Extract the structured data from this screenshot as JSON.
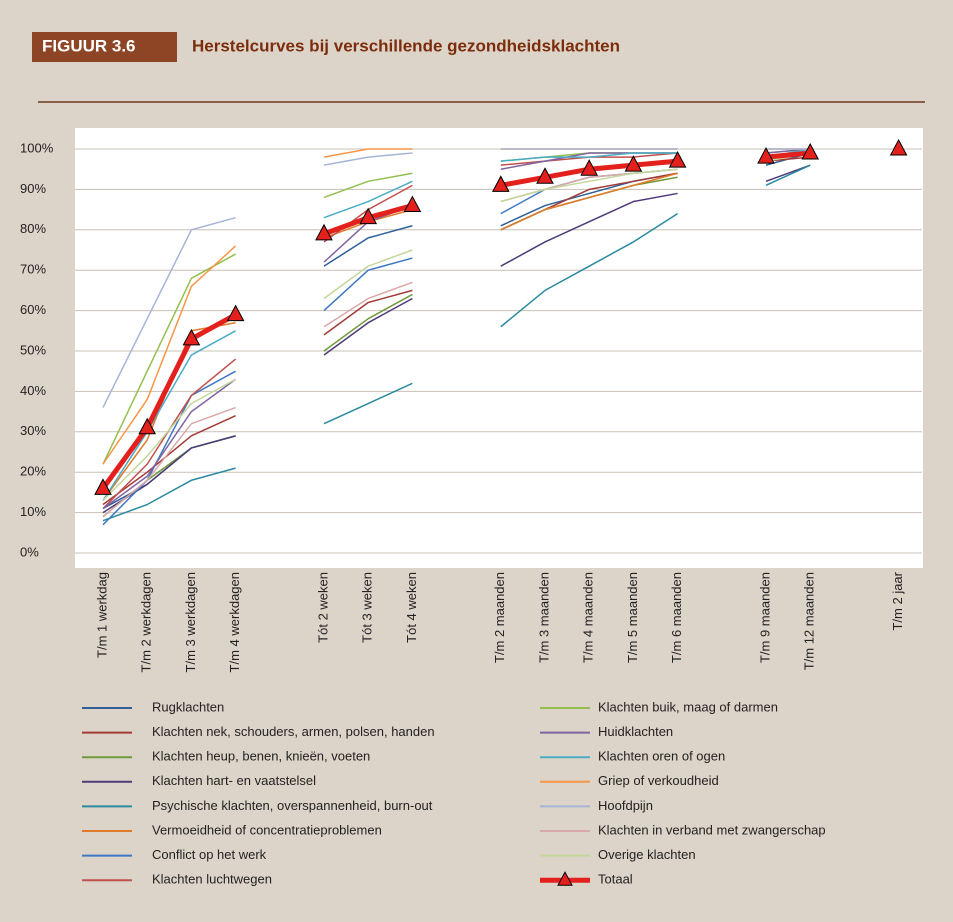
{
  "chart_data": {
    "type": "line",
    "figure_label": "FIGUUR 3.6",
    "title": "Herstelcurves bij verschillende gezondheidsklachten",
    "categories": [
      "T/m 1 werkdag",
      "T/m 2 werkdagen",
      "T/m 3 werkdagen",
      "T/m 4 werkdagen",
      null,
      "Tót 2 weken",
      "Tót 3 weken",
      "Tót 4 weken",
      null,
      "T/m 2 maanden",
      "T/m 3 maanden",
      "T/m 4 maanden",
      "T/m 5 maanden",
      "T/m 6 maanden",
      null,
      "T/m 9 maanden",
      "T/m 12 maanden",
      null,
      "T/m 2 jaar"
    ],
    "ylim": [
      0,
      100
    ],
    "yticks": [
      {
        "value": 0,
        "label": "0%"
      },
      {
        "value": 10,
        "label": "10%"
      },
      {
        "value": 20,
        "label": "20%"
      },
      {
        "value": 30,
        "label": "30%"
      },
      {
        "value": 40,
        "label": "40%"
      },
      {
        "value": 50,
        "label": "50%"
      },
      {
        "value": 60,
        "label": "60%"
      },
      {
        "value": 70,
        "label": "70%"
      },
      {
        "value": 80,
        "label": "80%"
      },
      {
        "value": 90,
        "label": "90%"
      },
      {
        "value": 100,
        "label": "100%"
      }
    ],
    "grid": true,
    "legend": "bottom",
    "series": [
      {
        "name": "Rugklachten",
        "color": "#2f5f98",
        "values": [
          11,
          17,
          26,
          29,
          null,
          71,
          78,
          81,
          null,
          81,
          86,
          89,
          92,
          94,
          null,
          96,
          99,
          null,
          null
        ]
      },
      {
        "name": "Klachten nek, schouders, armen, polsen, handen",
        "color": "#a33a36",
        "values": [
          12,
          20,
          29,
          34,
          null,
          54,
          62,
          65,
          null,
          80,
          85,
          90,
          92,
          94,
          null,
          97,
          98,
          null,
          null
        ]
      },
      {
        "name": "Klachten heup, benen, knieën, voeten",
        "color": "#6f9a3b",
        "values": [
          9,
          18,
          26,
          29,
          null,
          50,
          58,
          64,
          null,
          80,
          85,
          88,
          91,
          93,
          null,
          97,
          99,
          null,
          null
        ]
      },
      {
        "name": "Klachten hart- en vaatstelsel",
        "color": "#4f3a78",
        "values": [
          10,
          17,
          26,
          29,
          null,
          49,
          57,
          63,
          null,
          71,
          77,
          82,
          87,
          89,
          null,
          92,
          96,
          null,
          null
        ]
      },
      {
        "name": "Psychische klachten, overspannenheid, burn-out",
        "color": "#2a8aa0",
        "values": [
          8,
          12,
          18,
          21,
          null,
          32,
          37,
          42,
          null,
          56,
          65,
          71,
          77,
          84,
          null,
          91,
          96,
          null,
          null
        ]
      },
      {
        "name": "Vermoeidheid of concentratieproblemen",
        "color": "#e07b2a",
        "values": [
          13,
          28,
          55,
          57,
          null,
          78,
          82,
          85,
          null,
          80,
          85,
          88,
          91,
          94,
          null,
          97,
          99,
          null,
          null
        ]
      },
      {
        "name": "Conflict op het werk",
        "color": "#3d78c4",
        "values": [
          7,
          18,
          39,
          45,
          null,
          60,
          70,
          73,
          null,
          84,
          90,
          93,
          94,
          95,
          null,
          98,
          99,
          null,
          null
        ]
      },
      {
        "name": "Klachten luchtwegen",
        "color": "#c0504d",
        "values": [
          11,
          22,
          39,
          48,
          null,
          77,
          85,
          91,
          null,
          96,
          97,
          98,
          98,
          99,
          null,
          98,
          99,
          null,
          null
        ]
      },
      {
        "name": "Klachten buik, maag of darmen",
        "color": "#93bf4f",
        "values": [
          22,
          45,
          68,
          74,
          null,
          88,
          92,
          94,
          null,
          97,
          98,
          99,
          99,
          99,
          null,
          99,
          100,
          null,
          null
        ]
      },
      {
        "name": "Huidklachten",
        "color": "#8064a2",
        "values": [
          11,
          19,
          35,
          43,
          null,
          72,
          82,
          86,
          null,
          95,
          97,
          99,
          99,
          99,
          null,
          99,
          100,
          null,
          null
        ]
      },
      {
        "name": "Klachten oren of ogen",
        "color": "#4bacc6",
        "values": [
          13,
          30,
          49,
          55,
          null,
          83,
          87,
          92,
          null,
          97,
          98,
          98,
          99,
          99,
          null,
          98,
          100,
          null,
          null
        ]
      },
      {
        "name": "Griep of verkoudheid",
        "color": "#f79646",
        "values": [
          22,
          38,
          66,
          76,
          null,
          98,
          100,
          100,
          null,
          100,
          100,
          100,
          100,
          100,
          null,
          100,
          100,
          null,
          null
        ]
      },
      {
        "name": "Hoofdpijn",
        "color": "#a5b5d6",
        "values": [
          36,
          58,
          80,
          83,
          null,
          96,
          98,
          99,
          null,
          100,
          100,
          100,
          100,
          100,
          null,
          100,
          100,
          null,
          null
        ]
      },
      {
        "name": "Klachten in verband met zwangerschap",
        "color": "#d9a8a8",
        "values": [
          9,
          18,
          32,
          36,
          null,
          56,
          63,
          67,
          null,
          87,
          90,
          93,
          94,
          95,
          null,
          98,
          99,
          null,
          null
        ]
      },
      {
        "name": "Overige klachten",
        "color": "#c4d79b",
        "values": [
          13,
          24,
          37,
          43,
          null,
          63,
          71,
          75,
          null,
          87,
          90,
          92,
          94,
          95,
          null,
          97,
          99,
          null,
          null
        ]
      },
      {
        "name": "Totaal",
        "color": "#e4201c",
        "marker": "triangle",
        "values": [
          16,
          31,
          53,
          59,
          null,
          79,
          83,
          86,
          null,
          91,
          93,
          95,
          96,
          97,
          null,
          98,
          99,
          null,
          100
        ]
      }
    ]
  }
}
